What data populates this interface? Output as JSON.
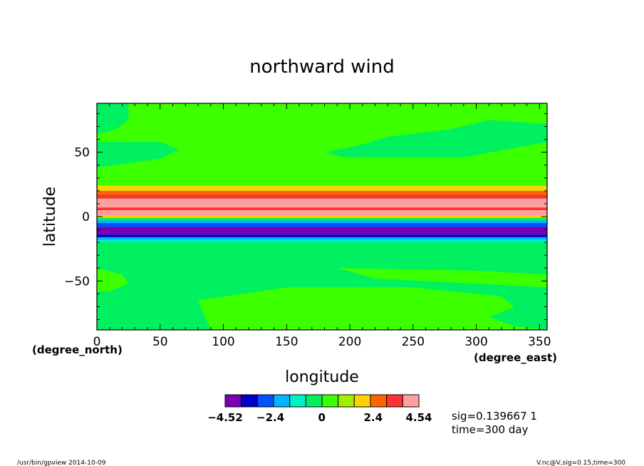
{
  "chart_data": {
    "type": "heatmap",
    "title": "northward wind",
    "xlabel": "longitude",
    "ylabel": "latitude",
    "x_units": "(degree_east)",
    "y_units": "(degree_north)",
    "xlim": [
      0,
      356
    ],
    "ylim": [
      -88,
      88
    ],
    "x_ticks": [
      "0",
      "50",
      "100",
      "150",
      "200",
      "250",
      "300",
      "350"
    ],
    "x_tick_values": [
      0,
      50,
      100,
      150,
      200,
      250,
      300,
      350
    ],
    "y_ticks": [
      "50",
      "0",
      "−50"
    ],
    "y_tick_values": [
      50,
      0,
      -50
    ],
    "colorbar": {
      "colors": [
        "#7a00b4",
        "#0000c8",
        "#0050ff",
        "#00b4ff",
        "#00f0c8",
        "#00f060",
        "#3cff00",
        "#a0f000",
        "#ffd200",
        "#ff6400",
        "#ff3232",
        "#ffa0a0"
      ],
      "labels": [
        "−4.52",
        "−2.4",
        "0",
        "2.4",
        "4.54"
      ],
      "label_values": [
        -4.52,
        -2.4,
        0,
        2.4,
        4.54
      ],
      "min": -4.52,
      "max": 4.54
    },
    "zonal_bands": [
      {
        "lat_from": 88,
        "lat_to": 24,
        "value": 0.3
      },
      {
        "lat_from": 24,
        "lat_to": 20,
        "value": 1.6
      },
      {
        "lat_from": 20,
        "lat_to": 17,
        "value": 2.8
      },
      {
        "lat_from": 17,
        "lat_to": 14,
        "value": 3.4
      },
      {
        "lat_from": 14,
        "lat_to": 7,
        "value": 4.5
      },
      {
        "lat_from": 7,
        "lat_to": 5,
        "value": 3.6
      },
      {
        "lat_from": 5,
        "lat_to": 1,
        "value": 4.5
      },
      {
        "lat_from": 1,
        "lat_to": -1,
        "value": 2.0
      },
      {
        "lat_from": -1,
        "lat_to": -3,
        "value": -0.5
      },
      {
        "lat_from": -3,
        "lat_to": -5,
        "value": -1.6
      },
      {
        "lat_from": -5,
        "lat_to": -8,
        "value": -3.0
      },
      {
        "lat_from": -8,
        "lat_to": -14,
        "value": -4.5
      },
      {
        "lat_from": -14,
        "lat_to": -16,
        "value": -3.5
      },
      {
        "lat_from": -16,
        "lat_to": -18,
        "value": -2.2
      },
      {
        "lat_from": -18,
        "lat_to": -20,
        "value": -1.2
      },
      {
        "lat_from": -20,
        "lat_to": -24,
        "value": -0.7
      },
      {
        "lat_from": -24,
        "lat_to": -88,
        "value": -0.3
      }
    ],
    "regions": [
      {
        "value": 0.3,
        "polygon": [
          [
            0,
            88
          ],
          [
            356,
            88
          ],
          [
            356,
            24
          ],
          [
            0,
            24
          ]
        ]
      },
      {
        "value": -0.3,
        "polygon": [
          [
            0,
            88
          ],
          [
            25,
            88
          ],
          [
            25,
            75
          ],
          [
            15,
            68
          ],
          [
            0,
            64
          ]
        ]
      },
      {
        "value": -0.3,
        "polygon": [
          [
            0,
            58
          ],
          [
            50,
            58
          ],
          [
            65,
            52
          ],
          [
            50,
            45
          ],
          [
            0,
            38
          ]
        ]
      },
      {
        "value": -0.3,
        "polygon": [
          [
            180,
            88
          ],
          [
            356,
            88
          ],
          [
            356,
            72
          ],
          [
            310,
            75
          ],
          [
            280,
            68
          ],
          [
            230,
            62
          ],
          [
            210,
            56
          ],
          [
            180,
            50
          ],
          [
            195,
            46
          ],
          [
            290,
            46
          ],
          [
            356,
            58
          ],
          [
            356,
            88
          ]
        ]
      },
      {
        "value": -0.3,
        "polygon": [
          [
            0,
            24
          ],
          [
            356,
            24
          ],
          [
            356,
            -88
          ],
          [
            0,
            -88
          ]
        ]
      },
      {
        "value": 0.3,
        "polygon": [
          [
            0,
            -40
          ],
          [
            20,
            -45
          ],
          [
            25,
            -52
          ],
          [
            10,
            -58
          ],
          [
            0,
            -58
          ]
        ]
      },
      {
        "value": 0.3,
        "polygon": [
          [
            90,
            -88
          ],
          [
            80,
            -65
          ],
          [
            150,
            -55
          ],
          [
            250,
            -55
          ],
          [
            320,
            -62
          ],
          [
            330,
            -70
          ],
          [
            310,
            -78
          ],
          [
            330,
            -85
          ],
          [
            356,
            -88
          ]
        ]
      },
      {
        "value": 0.3,
        "polygon": [
          [
            190,
            -40
          ],
          [
            300,
            -42
          ],
          [
            356,
            -45
          ],
          [
            356,
            -55
          ],
          [
            300,
            -52
          ],
          [
            220,
            -48
          ]
        ]
      }
    ],
    "annotations": [
      "sig=0.139667 1",
      "time=300 day"
    ]
  },
  "footer": {
    "left": "/usr/bin/gpview   2014-10-09",
    "right": "V.nc@V,sig=0.15,time=300"
  }
}
